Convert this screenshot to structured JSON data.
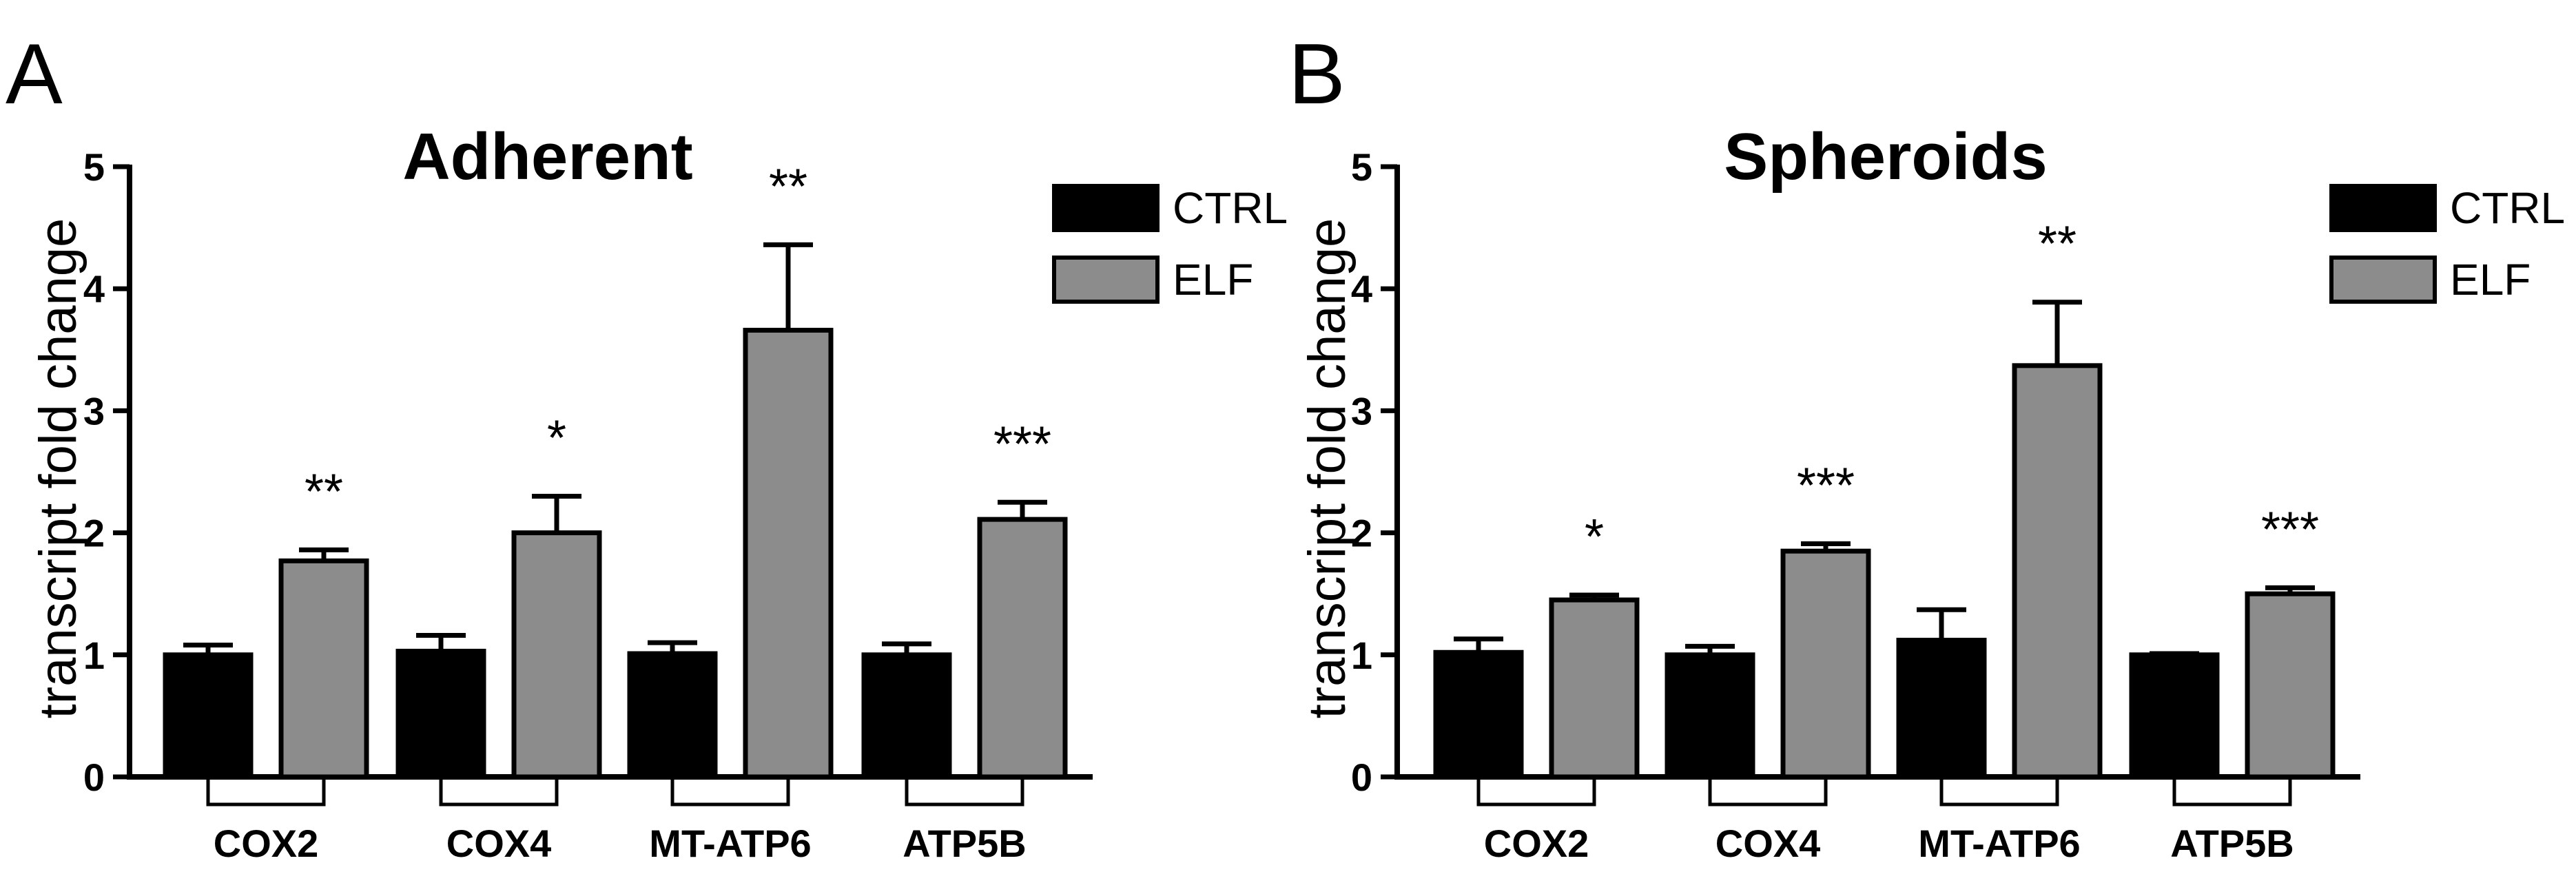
{
  "panels": [
    {
      "letter": "A"
    },
    {
      "letter": "B"
    }
  ],
  "colors": {
    "CTRL": "#000000",
    "ELF": "#8c8c8c",
    "axis": "#000000"
  },
  "chart_data": [
    {
      "type": "bar",
      "title": "Adherent",
      "xlabel": "",
      "ylabel": "transcript fold change",
      "ylim": [
        0,
        5
      ],
      "yticks": [
        "0",
        "1",
        "2",
        "3",
        "4",
        "5"
      ],
      "categories": [
        "COX2",
        "COX4",
        "MT-ATP6",
        "ATP5B"
      ],
      "series": [
        {
          "name": "CTRL",
          "values": [
            1.0,
            1.03,
            1.01,
            1.0
          ],
          "errors": [
            0.08,
            0.13,
            0.09,
            0.09
          ]
        },
        {
          "name": "ELF",
          "values": [
            1.77,
            2.0,
            3.66,
            2.11
          ],
          "errors": [
            0.09,
            0.3,
            0.7,
            0.14
          ]
        }
      ],
      "significance": [
        "**",
        "*",
        "**",
        "***"
      ],
      "legend": {
        "entries": [
          "CTRL",
          "ELF"
        ],
        "position": "top-right"
      },
      "grid": false
    },
    {
      "type": "bar",
      "title": "Spheroids",
      "xlabel": "",
      "ylabel": "transcript fold change",
      "ylim": [
        0,
        5
      ],
      "yticks": [
        "0",
        "1",
        "2",
        "3",
        "4",
        "5"
      ],
      "categories": [
        "COX2",
        "COX4",
        "MT-ATP6",
        "ATP5B"
      ],
      "series": [
        {
          "name": "CTRL",
          "values": [
            1.02,
            1.0,
            1.12,
            1.0
          ],
          "errors": [
            0.11,
            0.07,
            0.25,
            0.01
          ]
        },
        {
          "name": "ELF",
          "values": [
            1.45,
            1.85,
            3.37,
            1.5
          ],
          "errors": [
            0.04,
            0.06,
            0.52,
            0.05
          ]
        }
      ],
      "significance": [
        "*",
        "***",
        "**",
        "***"
      ],
      "legend": {
        "entries": [
          "CTRL",
          "ELF"
        ],
        "position": "top-right"
      },
      "grid": false
    }
  ]
}
